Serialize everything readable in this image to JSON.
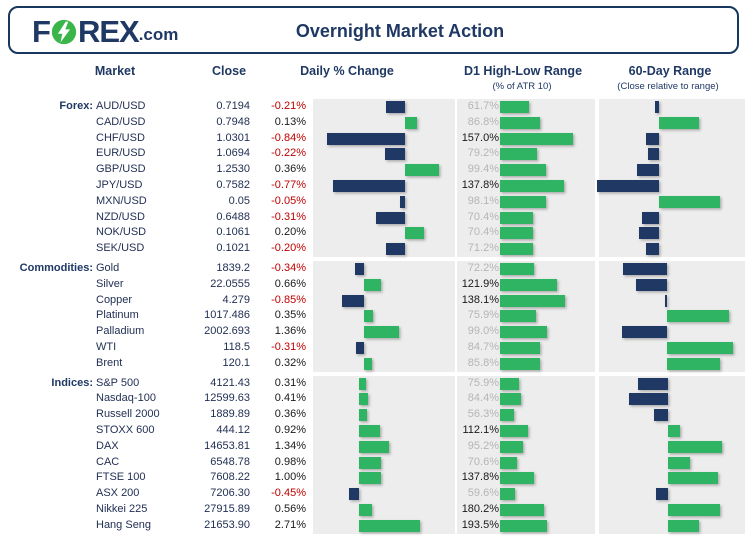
{
  "header": {
    "logo_part1": "F",
    "logo_part2": "REX",
    "logo_part3": ".com",
    "title": "Overnight Market Action"
  },
  "columns": {
    "market": "Market",
    "close": "Close",
    "daily": "Daily % Change",
    "d1": "D1 High-Low Range",
    "d1_sub": "(% of ATR 10)",
    "r60": "60-Day Range",
    "r60_sub": "(Close relative to range)"
  },
  "colors": {
    "navy": "#1F3864",
    "green": "#2EB463",
    "red": "#C00000",
    "text": "#223054",
    "text_black": "#1A1A1A",
    "gray_value": "#B5B5B5",
    "panel": "#EDEDED",
    "border_navy": "#17375E",
    "logo_green": "#3AB54A"
  },
  "chart_data": {
    "type": "bar",
    "title": "Overnight Market Action",
    "legend_note": "navy = negative / below midpoint, green = positive / above midpoint",
    "columns": [
      "Market",
      "Close",
      "Daily % Change",
      "D1 High-Low Range (% of ATR 10)",
      "60-Day Range (Close relative to range, estimated -1..1)"
    ],
    "groups": [
      {
        "label": "Forex:",
        "rows": [
          {
            "market": "AUD/USD",
            "close": "0.7194",
            "daily_label": "-0.21%",
            "daily_pct": -0.21,
            "d1_label": "61.7%",
            "d1_pct": 61.7,
            "r60": -0.07
          },
          {
            "market": "CAD/USD",
            "close": "0.7948",
            "daily_label": "0.13%",
            "daily_pct": 0.13,
            "d1_label": "86.8%",
            "d1_pct": 86.8,
            "r60": 0.67
          },
          {
            "market": "CHF/USD",
            "close": "1.0301",
            "daily_label": "-0.84%",
            "daily_pct": -0.84,
            "d1_label": "157.0%",
            "d1_pct": 157.0,
            "r60": -0.22
          },
          {
            "market": "EUR/USD",
            "close": "1.0694",
            "daily_label": "-0.22%",
            "daily_pct": -0.22,
            "d1_label": "79.2%",
            "d1_pct": 79.2,
            "r60": -0.18
          },
          {
            "market": "GBP/USD",
            "close": "1.2530",
            "daily_label": "0.36%",
            "daily_pct": 0.36,
            "d1_label": "99.4%",
            "d1_pct": 99.4,
            "r60": -0.37
          },
          {
            "market": "JPY/USD",
            "close": "0.7582",
            "daily_label": "-0.77%",
            "daily_pct": -0.77,
            "d1_label": "137.8%",
            "d1_pct": 137.8,
            "r60": -1.03
          },
          {
            "market": "MXN/USD",
            "close": "0.05",
            "daily_label": "-0.05%",
            "daily_pct": -0.05,
            "d1_label": "98.1%",
            "d1_pct": 98.1,
            "r60": 1.02
          },
          {
            "market": "NZD/USD",
            "close": "0.6488",
            "daily_label": "-0.31%",
            "daily_pct": -0.31,
            "d1_label": "70.4%",
            "d1_pct": 70.4,
            "r60": -0.28
          },
          {
            "market": "NOK/USD",
            "close": "0.1061",
            "daily_label": "0.20%",
            "daily_pct": 0.2,
            "d1_label": "70.4%",
            "d1_pct": 70.4,
            "r60": -0.33
          },
          {
            "market": "SEK/USD",
            "close": "0.1021",
            "daily_label": "-0.20%",
            "daily_pct": -0.2,
            "d1_label": "71.2%",
            "d1_pct": 71.2,
            "r60": -0.22
          }
        ]
      },
      {
        "label": "Commodities:",
        "rows": [
          {
            "market": "Gold",
            "close": "1839.2",
            "daily_label": "-0.34%",
            "daily_pct": -0.34,
            "d1_label": "72.2%",
            "d1_pct": 72.2,
            "r60": -0.73
          },
          {
            "market": "Silver",
            "close": "22.0555",
            "daily_label": "0.66%",
            "daily_pct": 0.66,
            "d1_label": "121.9%",
            "d1_pct": 121.9,
            "r60": -0.52
          },
          {
            "market": "Copper",
            "close": "4.279",
            "daily_label": "-0.85%",
            "daily_pct": -0.85,
            "d1_label": "138.1%",
            "d1_pct": 138.1,
            "r60": -0.03
          },
          {
            "market": "Platinum",
            "close": "1017.486",
            "daily_label": "0.35%",
            "daily_pct": 0.35,
            "d1_label": "75.9%",
            "d1_pct": 75.9,
            "r60": 1.03
          },
          {
            "market": "Palladium",
            "close": "2002.693",
            "daily_label": "1.36%",
            "daily_pct": 1.36,
            "d1_label": "99.0%",
            "d1_pct": 99.0,
            "r60": -0.75
          },
          {
            "market": "WTI",
            "close": "118.5",
            "daily_label": "-0.31%",
            "daily_pct": -0.31,
            "d1_label": "84.7%",
            "d1_pct": 84.7,
            "r60": 1.1
          },
          {
            "market": "Brent",
            "close": "120.1",
            "daily_label": "0.32%",
            "daily_pct": 0.32,
            "d1_label": "85.8%",
            "d1_pct": 85.8,
            "r60": 0.89
          }
        ]
      },
      {
        "label": "Indices:",
        "rows": [
          {
            "market": "S&P 500",
            "close": "4121.43",
            "daily_label": "0.31%",
            "daily_pct": 0.31,
            "d1_label": "75.9%",
            "d1_pct": 75.9,
            "r60": -0.5
          },
          {
            "market": "Nasdaq-100",
            "close": "12599.63",
            "daily_label": "0.41%",
            "daily_pct": 0.41,
            "d1_label": "84.4%",
            "d1_pct": 84.4,
            "r60": -0.65
          },
          {
            "market": "Russell 2000",
            "close": "1889.89",
            "daily_label": "0.36%",
            "daily_pct": 0.36,
            "d1_label": "56.3%",
            "d1_pct": 56.3,
            "r60": -0.23
          },
          {
            "market": "STOXX 600",
            "close": "444.12",
            "daily_label": "0.92%",
            "daily_pct": 0.92,
            "d1_label": "112.1%",
            "d1_pct": 112.1,
            "r60": 0.2
          },
          {
            "market": "DAX",
            "close": "14653.81",
            "daily_label": "1.34%",
            "daily_pct": 1.34,
            "d1_label": "95.2%",
            "d1_pct": 95.2,
            "r60": 0.9
          },
          {
            "market": "CAC",
            "close": "6548.78",
            "daily_label": "0.98%",
            "daily_pct": 0.98,
            "d1_label": "70.6%",
            "d1_pct": 70.6,
            "r60": 0.37
          },
          {
            "market": "FTSE 100",
            "close": "7608.22",
            "daily_label": "1.00%",
            "daily_pct": 1.0,
            "d1_label": "137.8%",
            "d1_pct": 137.8,
            "r60": 0.83
          },
          {
            "market": "ASX 200",
            "close": "7206.30",
            "daily_label": "-0.45%",
            "daily_pct": -0.45,
            "d1_label": "59.6%",
            "d1_pct": 59.6,
            "r60": -0.2
          },
          {
            "market": "Nikkei 225",
            "close": "27915.89",
            "daily_label": "0.56%",
            "daily_pct": 0.56,
            "d1_label": "180.2%",
            "d1_pct": 180.2,
            "r60": 0.87
          },
          {
            "market": "Hang Seng",
            "close": "21653.90",
            "daily_label": "2.71%",
            "daily_pct": 2.71,
            "d1_label": "193.5%",
            "d1_pct": 193.5,
            "r60": 0.52
          }
        ]
      }
    ]
  }
}
